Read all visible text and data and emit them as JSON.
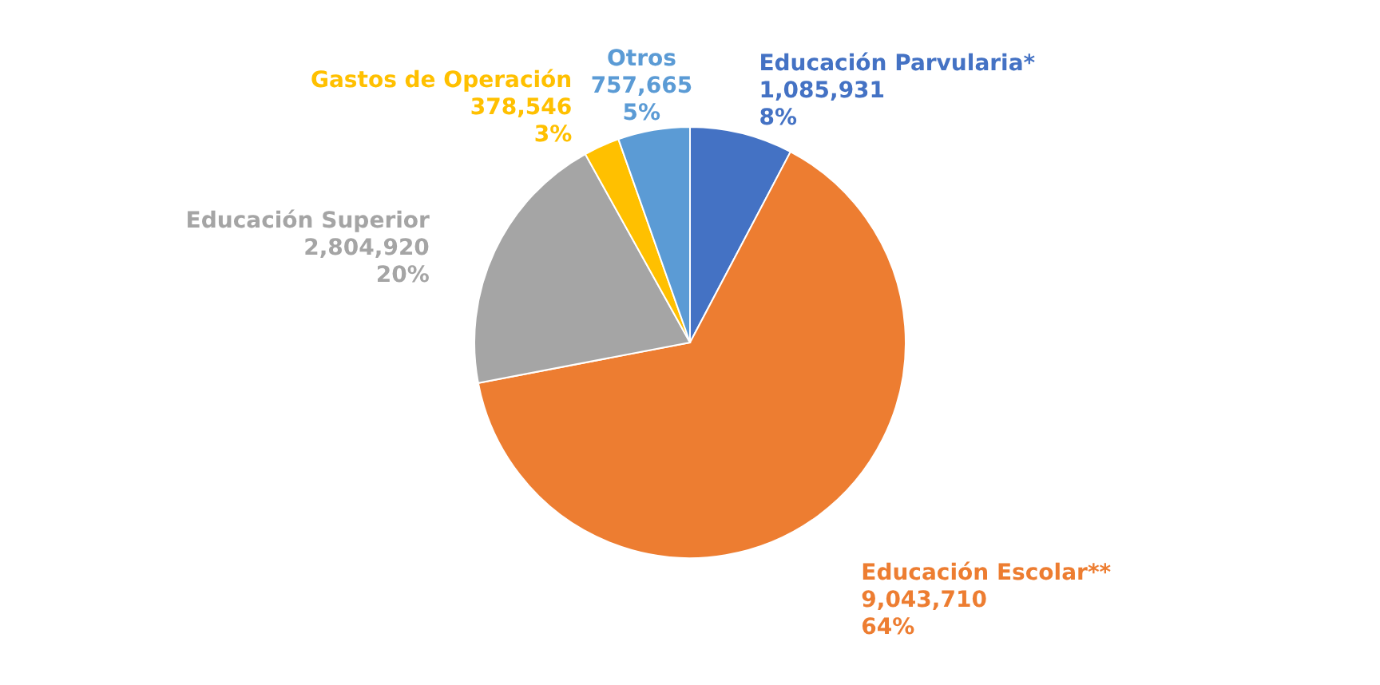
{
  "chart_data": {
    "type": "pie",
    "categories": [
      "Educación Parvularia*",
      "Educación Escolar**",
      "Educación Superior",
      "Gastos de Operación",
      "Otros"
    ],
    "values": [
      1085931,
      9043710,
      2804920,
      378546,
      757665
    ],
    "colors": [
      "#4472c4",
      "#ed7d31",
      "#a5a5a5",
      "#ffc000",
      "#5b9bd5"
    ],
    "value_labels": [
      "1,085,931\n8%",
      "9,043,710\n64%",
      "2,804,920\n20%",
      "378,546\n3%",
      "757,665\n5%"
    ]
  }
}
